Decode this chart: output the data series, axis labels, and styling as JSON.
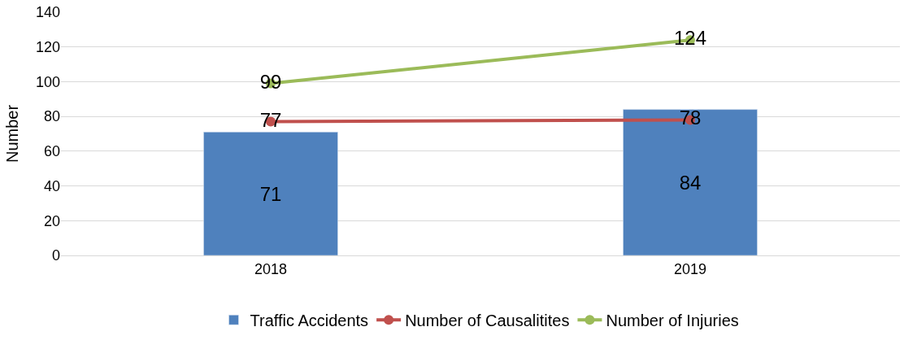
{
  "chart_data": {
    "type": "bar",
    "ylabel": "Number",
    "categories": [
      "2018",
      "2019"
    ],
    "series": [
      {
        "name": "Traffic Accidents",
        "color": "#4f81bd",
        "values": [
          71,
          84
        ]
      },
      {
        "name": "Number of Causalitites",
        "type": "line",
        "color": "#c0504d",
        "values": [
          77,
          78
        ]
      },
      {
        "name": "Number of Injuries",
        "type": "line",
        "color": "#9bbb59",
        "values": [
          99,
          124
        ]
      }
    ],
    "ylim": [
      0,
      140
    ],
    "yticks": [
      0,
      20,
      40,
      60,
      80,
      100,
      120,
      140
    ],
    "grid": "y",
    "legend": "bottom",
    "data_labels": true,
    "marker": "circle",
    "line_style": "solid"
  }
}
